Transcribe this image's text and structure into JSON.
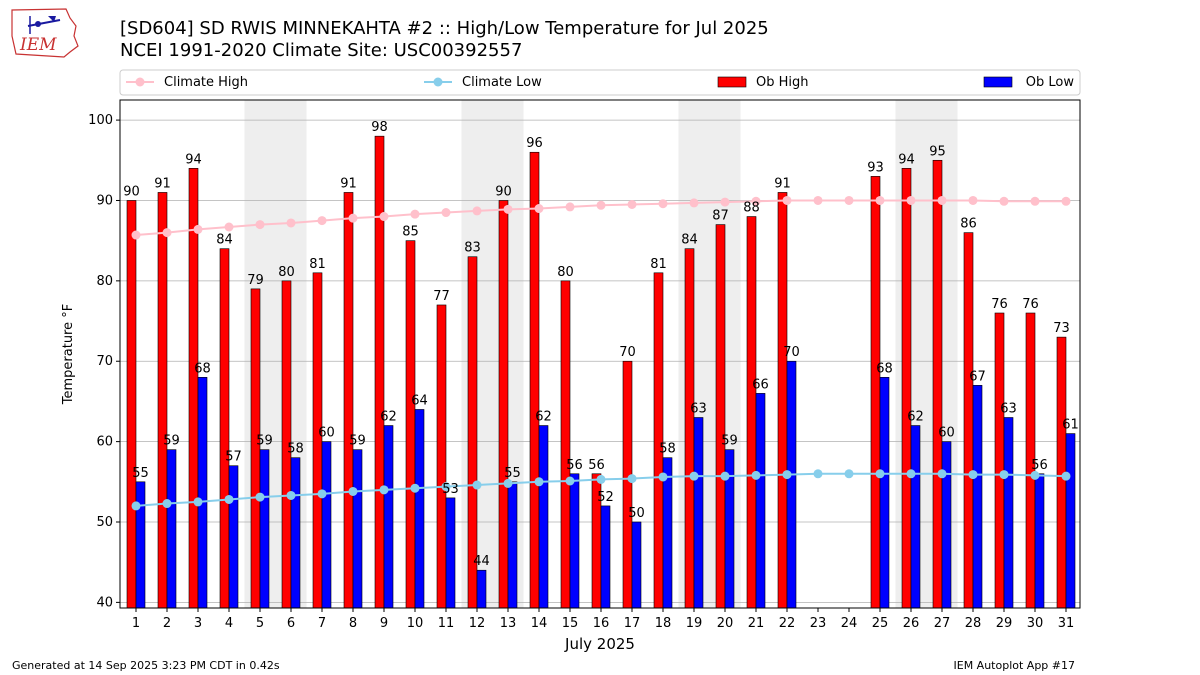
{
  "logo_text": "IEM",
  "title_line1": "[SD604] SD RWIS MINNEKAHTA #2 :: High/Low Temperature for Jul 2025",
  "title_line2": "NCEI 1991-2020 Climate Site: USC00392557",
  "footer_left": "Generated at 14 Sep 2025 3:23 PM CDT in 0.42s",
  "footer_right": "IEM Autoplot App #17",
  "colors": {
    "ob_high": "#ff0000",
    "ob_low": "#0000ff",
    "climate_high": "#ffc0cb",
    "climate_low": "#87ceeb",
    "weekend_shade": "#eeeeee",
    "grid": "#b0b0b0"
  },
  "chart_data": {
    "type": "bar",
    "xlabel": "July 2025",
    "ylabel": "Temperature °F",
    "ylim": [
      39.3,
      102.5
    ],
    "yticks": [
      40,
      50,
      60,
      70,
      80,
      90,
      100
    ],
    "grid": true,
    "legend_position": "top",
    "categories": [
      "1",
      "2",
      "3",
      "4",
      "5",
      "6",
      "7",
      "8",
      "9",
      "10",
      "11",
      "12",
      "13",
      "14",
      "15",
      "16",
      "17",
      "18",
      "19",
      "20",
      "21",
      "22",
      "23",
      "24",
      "25",
      "26",
      "27",
      "28",
      "29",
      "30",
      "31"
    ],
    "shaded_days": [
      [
        5,
        6
      ],
      [
        12,
        13
      ],
      [
        19,
        20
      ],
      [
        26,
        27
      ]
    ],
    "series": [
      {
        "name": "Ob High",
        "kind": "bar",
        "values": [
          90,
          91,
          94,
          84,
          79,
          80,
          81,
          91,
          98,
          85,
          77,
          83,
          90,
          96,
          80,
          56,
          70,
          81,
          84,
          87,
          88,
          91,
          null,
          null,
          93,
          94,
          95,
          86,
          76,
          76,
          73
        ]
      },
      {
        "name": "Ob Low",
        "kind": "bar",
        "values": [
          55,
          59,
          68,
          57,
          59,
          58,
          60,
          59,
          62,
          64,
          53,
          44,
          55,
          62,
          56,
          52,
          50,
          58,
          63,
          59,
          66,
          70,
          null,
          null,
          68,
          62,
          60,
          67,
          63,
          56,
          61
        ]
      },
      {
        "name": "Climate High",
        "kind": "line",
        "values": [
          85.7,
          86.0,
          86.4,
          86.7,
          87.0,
          87.2,
          87.5,
          87.8,
          88.0,
          88.3,
          88.5,
          88.7,
          88.9,
          89.0,
          89.2,
          89.4,
          89.5,
          89.6,
          89.7,
          89.8,
          89.9,
          90.0,
          90.0,
          90.0,
          90.0,
          90.0,
          90.0,
          90.0,
          89.9,
          89.9,
          89.9
        ]
      },
      {
        "name": "Climate Low",
        "kind": "line",
        "values": [
          52.0,
          52.3,
          52.5,
          52.8,
          53.1,
          53.3,
          53.5,
          53.8,
          54.0,
          54.2,
          54.4,
          54.6,
          54.8,
          55.0,
          55.1,
          55.3,
          55.4,
          55.6,
          55.7,
          55.7,
          55.8,
          55.9,
          56.0,
          56.0,
          56.0,
          56.0,
          56.0,
          55.9,
          55.9,
          55.8,
          55.7
        ]
      }
    ]
  }
}
